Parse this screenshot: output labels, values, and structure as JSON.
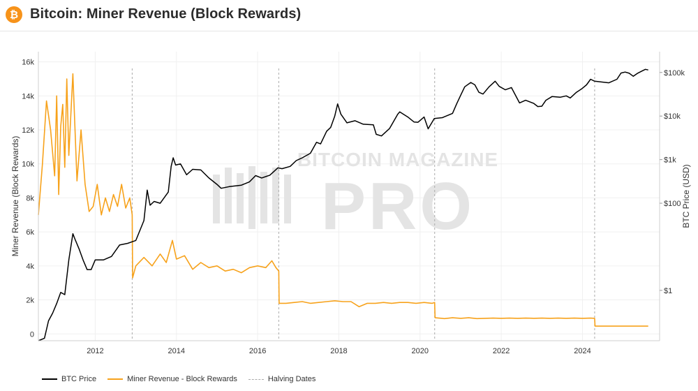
{
  "header": {
    "title": "Bitcoin: Miner Revenue (Block Rewards)",
    "icon": "bitcoin-icon",
    "icon_glyph": "₿"
  },
  "watermark": {
    "line1": "BITCOIN MAGAZINE",
    "line2": "PRO"
  },
  "colors": {
    "btc_price": "#000000",
    "miner_revenue": "#f7a21b",
    "halving": "#aaaaaa",
    "brand": "#f7931a"
  },
  "chart_data": {
    "type": "line",
    "grid": true,
    "legend_placement": "bottom-left",
    "y_left": {
      "label": "Miner Revenue (Block Rewards)",
      "range": [
        -400,
        16600
      ],
      "ticks": [
        0,
        2000,
        4000,
        6000,
        8000,
        10000,
        12000,
        14000,
        16000
      ],
      "tick_labels": [
        "0",
        "2k",
        "4k",
        "6k",
        "8k",
        "10k",
        "12k",
        "14k",
        "16k"
      ]
    },
    "y_right": {
      "label": "BTC Price (USD)",
      "scale": "log",
      "range": [
        0.07,
        300000
      ],
      "ticks": [
        1,
        100,
        1000,
        10000,
        100000
      ],
      "tick_labels": [
        "$1",
        "$100",
        "$1k",
        "$10k",
        "$100k"
      ]
    },
    "x": {
      "range": [
        2010.6,
        2025.9
      ],
      "ticks": [
        2012,
        2014,
        2016,
        2018,
        2020,
        2022,
        2024
      ],
      "tick_labels": [
        "2012",
        "2014",
        "2016",
        "2018",
        "2020",
        "2022",
        "2024"
      ]
    },
    "halving_dates": [
      2012.91,
      2016.52,
      2020.36,
      2024.3
    ],
    "series": [
      {
        "name": "BTC Price",
        "axis": "right",
        "points": [
          [
            2010.6,
            0.07
          ],
          [
            2010.75,
            0.08
          ],
          [
            2010.85,
            0.2
          ],
          [
            2010.95,
            0.3
          ],
          [
            2011.05,
            0.5
          ],
          [
            2011.15,
            0.9
          ],
          [
            2011.25,
            0.8
          ],
          [
            2011.35,
            5
          ],
          [
            2011.45,
            20
          ],
          [
            2011.5,
            15
          ],
          [
            2011.6,
            9
          ],
          [
            2011.7,
            5
          ],
          [
            2011.8,
            3
          ],
          [
            2011.9,
            3
          ],
          [
            2012.0,
            5
          ],
          [
            2012.2,
            5
          ],
          [
            2012.4,
            6
          ],
          [
            2012.6,
            11
          ],
          [
            2012.8,
            12
          ],
          [
            2012.9,
            13
          ],
          [
            2013.0,
            14
          ],
          [
            2013.2,
            40
          ],
          [
            2013.28,
            200
          ],
          [
            2013.35,
            90
          ],
          [
            2013.45,
            110
          ],
          [
            2013.6,
            100
          ],
          [
            2013.8,
            180
          ],
          [
            2013.87,
            700
          ],
          [
            2013.92,
            1100
          ],
          [
            2013.98,
            750
          ],
          [
            2014.1,
            800
          ],
          [
            2014.25,
            450
          ],
          [
            2014.4,
            600
          ],
          [
            2014.6,
            580
          ],
          [
            2014.8,
            380
          ],
          [
            2015.0,
            270
          ],
          [
            2015.1,
            220
          ],
          [
            2015.3,
            240
          ],
          [
            2015.6,
            260
          ],
          [
            2015.8,
            310
          ],
          [
            2015.95,
            430
          ],
          [
            2016.1,
            380
          ],
          [
            2016.3,
            440
          ],
          [
            2016.5,
            650
          ],
          [
            2016.6,
            620
          ],
          [
            2016.8,
            700
          ],
          [
            2016.95,
            950
          ],
          [
            2017.1,
            1100
          ],
          [
            2017.3,
            1400
          ],
          [
            2017.45,
            2500
          ],
          [
            2017.55,
            2300
          ],
          [
            2017.7,
            4500
          ],
          [
            2017.8,
            5500
          ],
          [
            2017.9,
            10000
          ],
          [
            2017.97,
            19000
          ],
          [
            2018.05,
            11000
          ],
          [
            2018.2,
            7000
          ],
          [
            2018.4,
            7800
          ],
          [
            2018.6,
            6500
          ],
          [
            2018.85,
            6300
          ],
          [
            2018.92,
            3800
          ],
          [
            2019.05,
            3500
          ],
          [
            2019.25,
            5200
          ],
          [
            2019.45,
            11000
          ],
          [
            2019.5,
            12500
          ],
          [
            2019.7,
            9500
          ],
          [
            2019.85,
            7300
          ],
          [
            2019.95,
            7200
          ],
          [
            2020.1,
            9500
          ],
          [
            2020.2,
            5100
          ],
          [
            2020.35,
            8800
          ],
          [
            2020.55,
            9200
          ],
          [
            2020.8,
            11500
          ],
          [
            2020.9,
            19000
          ],
          [
            2021.0,
            30000
          ],
          [
            2021.1,
            47000
          ],
          [
            2021.25,
            59000
          ],
          [
            2021.35,
            52000
          ],
          [
            2021.45,
            35000
          ],
          [
            2021.55,
            32000
          ],
          [
            2021.7,
            47000
          ],
          [
            2021.85,
            63000
          ],
          [
            2021.95,
            48000
          ],
          [
            2022.1,
            40000
          ],
          [
            2022.25,
            45000
          ],
          [
            2022.35,
            30000
          ],
          [
            2022.45,
            20000
          ],
          [
            2022.6,
            23000
          ],
          [
            2022.8,
            19500
          ],
          [
            2022.9,
            16500
          ],
          [
            2023.0,
            16800
          ],
          [
            2023.1,
            23000
          ],
          [
            2023.25,
            28000
          ],
          [
            2023.45,
            27000
          ],
          [
            2023.6,
            29000
          ],
          [
            2023.7,
            26000
          ],
          [
            2023.85,
            35000
          ],
          [
            2023.98,
            42000
          ],
          [
            2024.1,
            52000
          ],
          [
            2024.2,
            70000
          ],
          [
            2024.3,
            63000
          ],
          [
            2024.5,
            60000
          ],
          [
            2024.65,
            58000
          ],
          [
            2024.85,
            70000
          ],
          [
            2024.95,
            97000
          ],
          [
            2025.05,
            102000
          ],
          [
            2025.15,
            96000
          ],
          [
            2025.25,
            82000
          ],
          [
            2025.35,
            95000
          ],
          [
            2025.45,
            106000
          ],
          [
            2025.55,
            118000
          ],
          [
            2025.62,
            114000
          ]
        ]
      },
      {
        "name": "Miner Revenue - Block Rewards",
        "axis": "left",
        "points": [
          [
            2010.6,
            7000
          ],
          [
            2010.7,
            10000
          ],
          [
            2010.8,
            13700
          ],
          [
            2010.9,
            12000
          ],
          [
            2011.0,
            9300
          ],
          [
            2011.05,
            14000
          ],
          [
            2011.1,
            8200
          ],
          [
            2011.15,
            12200
          ],
          [
            2011.2,
            13500
          ],
          [
            2011.25,
            9800
          ],
          [
            2011.3,
            15000
          ],
          [
            2011.35,
            10500
          ],
          [
            2011.45,
            15300
          ],
          [
            2011.55,
            9000
          ],
          [
            2011.65,
            12000
          ],
          [
            2011.75,
            8800
          ],
          [
            2011.85,
            7200
          ],
          [
            2011.95,
            7500
          ],
          [
            2012.05,
            8800
          ],
          [
            2012.15,
            7000
          ],
          [
            2012.25,
            8000
          ],
          [
            2012.35,
            7200
          ],
          [
            2012.45,
            8200
          ],
          [
            2012.55,
            7500
          ],
          [
            2012.65,
            8800
          ],
          [
            2012.75,
            7400
          ],
          [
            2012.85,
            8000
          ],
          [
            2012.91,
            7000
          ],
          [
            2012.92,
            3300
          ],
          [
            2013.0,
            4000
          ],
          [
            2013.2,
            4500
          ],
          [
            2013.4,
            4000
          ],
          [
            2013.6,
            4700
          ],
          [
            2013.75,
            4200
          ],
          [
            2013.9,
            5500
          ],
          [
            2014.0,
            4400
          ],
          [
            2014.2,
            4600
          ],
          [
            2014.4,
            3800
          ],
          [
            2014.6,
            4200
          ],
          [
            2014.8,
            3900
          ],
          [
            2015.0,
            4000
          ],
          [
            2015.2,
            3700
          ],
          [
            2015.4,
            3800
          ],
          [
            2015.6,
            3600
          ],
          [
            2015.8,
            3900
          ],
          [
            2016.0,
            4000
          ],
          [
            2016.2,
            3900
          ],
          [
            2016.35,
            4300
          ],
          [
            2016.45,
            3900
          ],
          [
            2016.52,
            3700
          ],
          [
            2016.53,
            1800
          ],
          [
            2016.7,
            1800
          ],
          [
            2016.9,
            1850
          ],
          [
            2017.1,
            1900
          ],
          [
            2017.3,
            1800
          ],
          [
            2017.5,
            1850
          ],
          [
            2017.7,
            1900
          ],
          [
            2017.9,
            1950
          ],
          [
            2018.1,
            1900
          ],
          [
            2018.3,
            1900
          ],
          [
            2018.5,
            1600
          ],
          [
            2018.7,
            1800
          ],
          [
            2018.9,
            1800
          ],
          [
            2019.1,
            1850
          ],
          [
            2019.3,
            1800
          ],
          [
            2019.5,
            1850
          ],
          [
            2019.7,
            1850
          ],
          [
            2019.9,
            1800
          ],
          [
            2020.1,
            1850
          ],
          [
            2020.3,
            1800
          ],
          [
            2020.36,
            1850
          ],
          [
            2020.37,
            950
          ],
          [
            2020.6,
            900
          ],
          [
            2020.8,
            950
          ],
          [
            2021.0,
            920
          ],
          [
            2021.2,
            950
          ],
          [
            2021.4,
            900
          ],
          [
            2021.6,
            920
          ],
          [
            2021.8,
            930
          ],
          [
            2022.0,
            920
          ],
          [
            2022.2,
            930
          ],
          [
            2022.4,
            920
          ],
          [
            2022.6,
            930
          ],
          [
            2022.8,
            920
          ],
          [
            2023.0,
            930
          ],
          [
            2023.2,
            920
          ],
          [
            2023.4,
            930
          ],
          [
            2023.6,
            920
          ],
          [
            2023.8,
            930
          ],
          [
            2024.0,
            920
          ],
          [
            2024.2,
            930
          ],
          [
            2024.3,
            920
          ],
          [
            2024.31,
            460
          ],
          [
            2024.6,
            460
          ],
          [
            2024.9,
            460
          ],
          [
            2025.2,
            460
          ],
          [
            2025.5,
            460
          ],
          [
            2025.62,
            460
          ]
        ]
      }
    ],
    "legend": [
      {
        "name": "BTC Price",
        "style": "solid",
        "color": "#000000"
      },
      {
        "name": "Miner Revenue - Block Rewards",
        "style": "solid",
        "color": "#f7a21b"
      },
      {
        "name": "Halving Dates",
        "style": "dashed",
        "color": "#aaaaaa"
      }
    ]
  }
}
